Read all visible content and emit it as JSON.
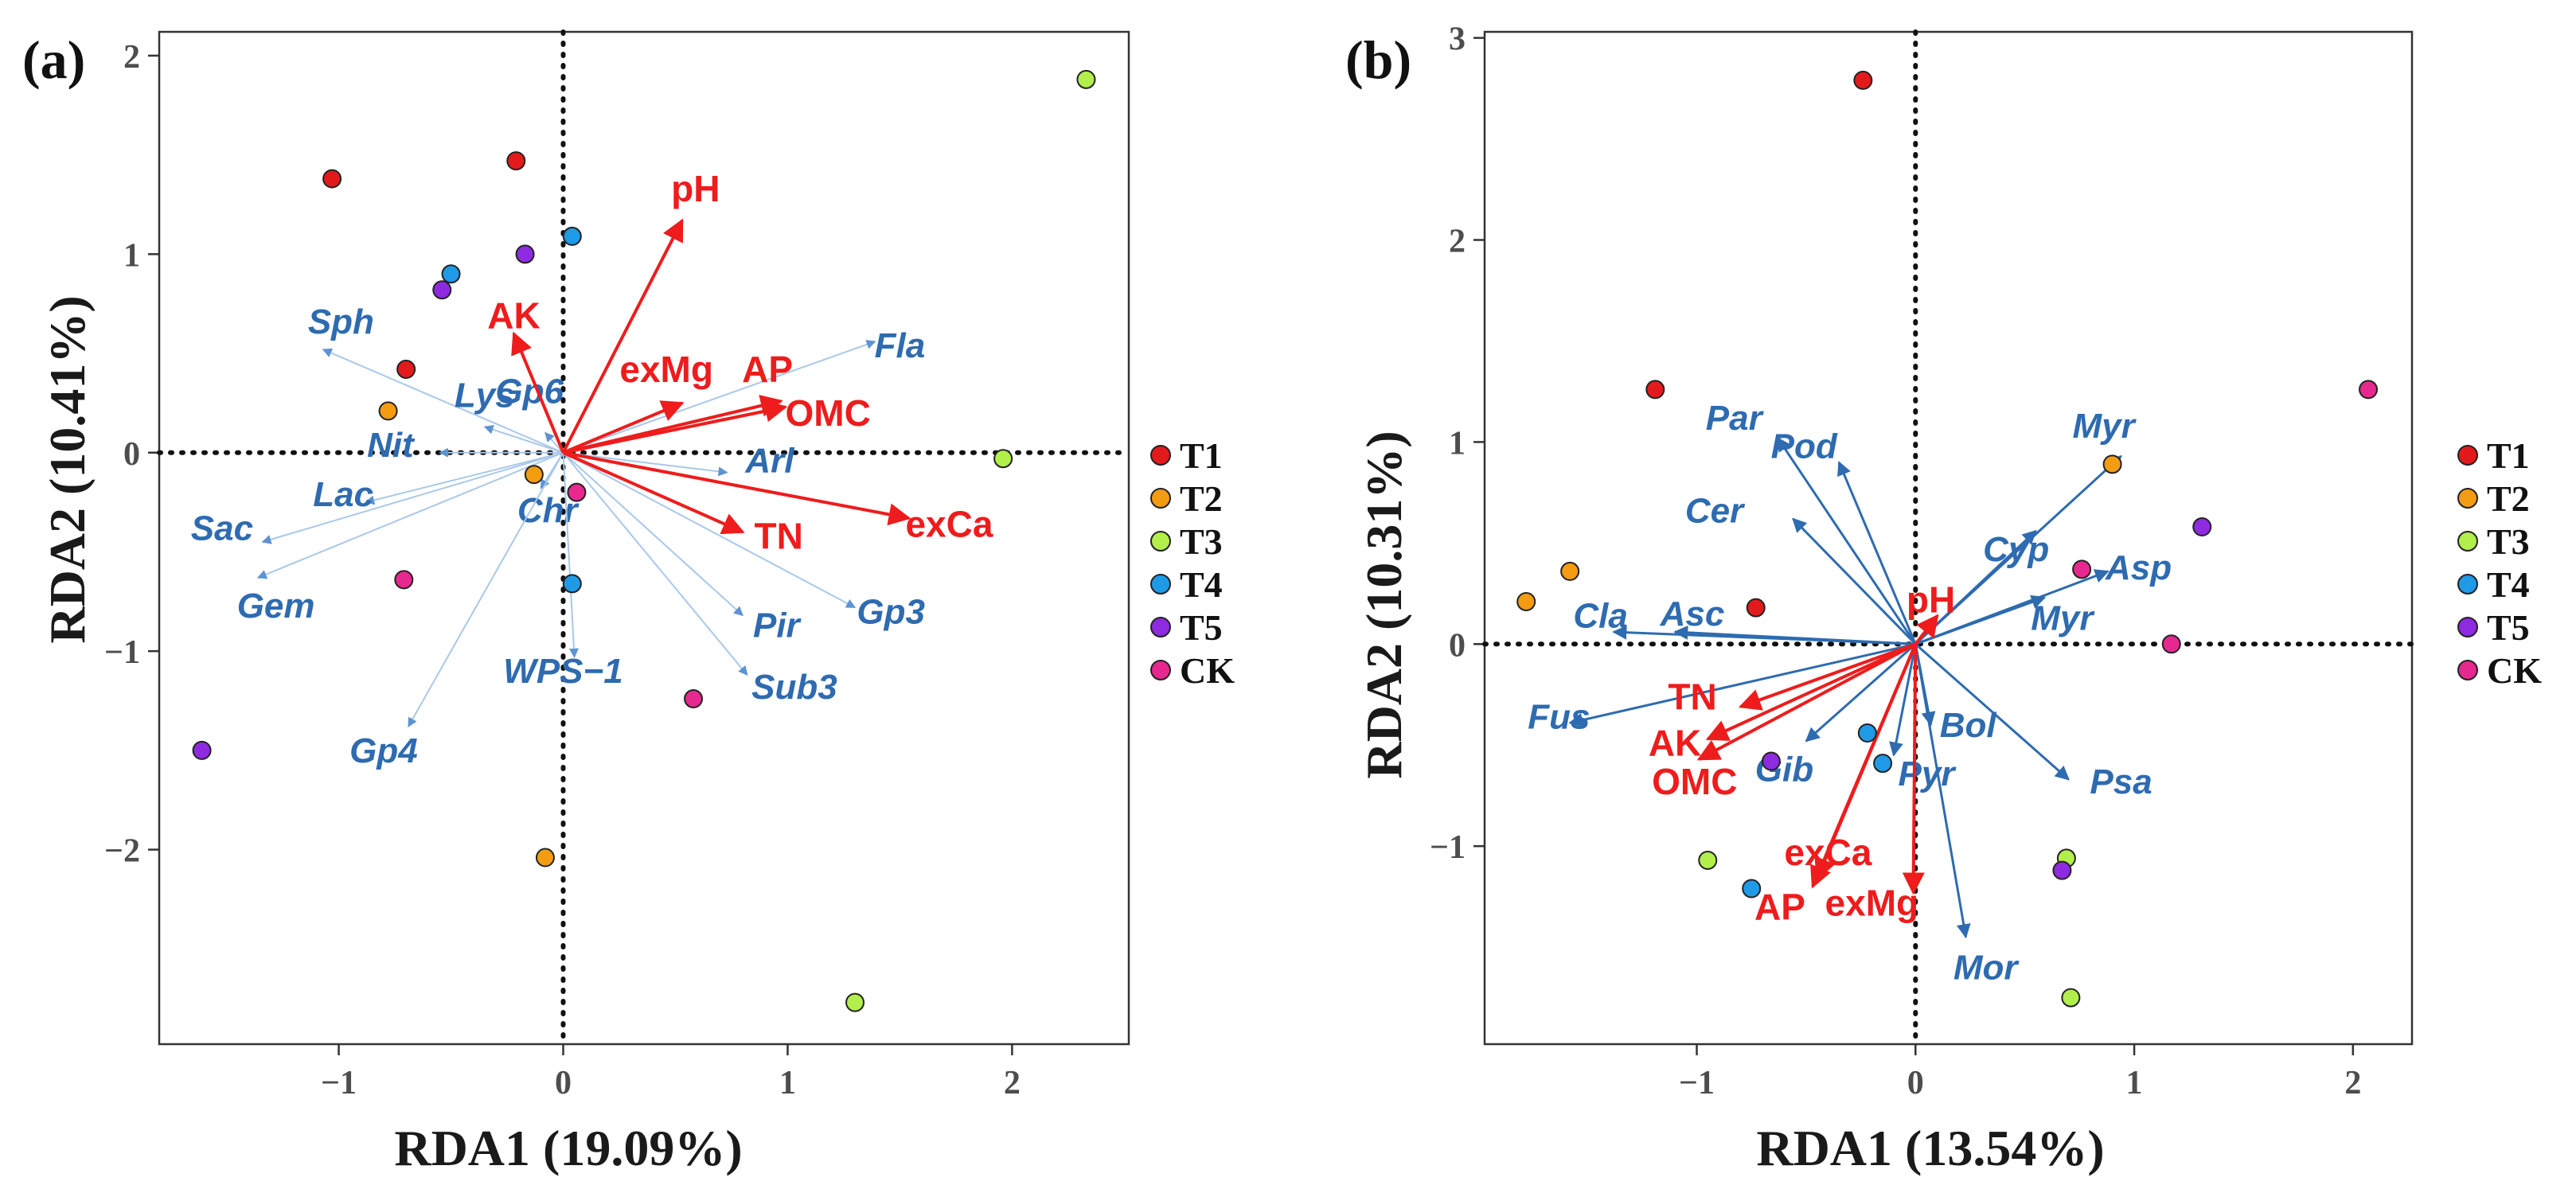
{
  "colors": {
    "T1": "#e31a1c",
    "T2": "#f39c12",
    "T3": "#b2ee4c",
    "T4": "#1f9ae6",
    "T5": "#8e2ae0",
    "CK": "#e6288f",
    "env": "#ee1c1c",
    "species_a": "#a9c8ea",
    "species_b": "#2e6bb0"
  },
  "chart_data": [
    {
      "type": "scatter",
      "panel_label": "(a)",
      "xlabel": "RDA1 (19.09%)",
      "ylabel": "RDA2 (10.41%)",
      "xlim": [
        -1.8,
        2.52
      ],
      "ylim": [
        -2.98,
        2.12
      ],
      "xticks": [
        -1,
        0,
        1,
        2
      ],
      "xtick_labels": [
        "−1",
        "0",
        "1",
        "2"
      ],
      "yticks": [
        -2,
        -1,
        0,
        1,
        2
      ],
      "ytick_labels": [
        "−2",
        "−1",
        "0",
        "1",
        "2"
      ],
      "legend": [
        "T1",
        "T2",
        "T3",
        "T4",
        "T5",
        "CK"
      ],
      "points": [
        {
          "group": "T1",
          "x": -1.03,
          "y": 1.38
        },
        {
          "group": "T1",
          "x": -0.21,
          "y": 1.47
        },
        {
          "group": "T1",
          "x": -0.7,
          "y": 0.42
        },
        {
          "group": "T2",
          "x": -0.78,
          "y": 0.21
        },
        {
          "group": "T2",
          "x": -0.13,
          "y": -0.11
        },
        {
          "group": "T2",
          "x": -0.08,
          "y": -2.04
        },
        {
          "group": "T3",
          "x": 2.33,
          "y": 1.88
        },
        {
          "group": "T3",
          "x": 1.96,
          "y": -0.03
        },
        {
          "group": "T3",
          "x": 1.3,
          "y": -2.77
        },
        {
          "group": "T4",
          "x": -0.5,
          "y": 0.9
        },
        {
          "group": "T4",
          "x": 0.04,
          "y": 1.09
        },
        {
          "group": "T4",
          "x": 0.04,
          "y": -0.66
        },
        {
          "group": "T5",
          "x": -0.54,
          "y": 0.82
        },
        {
          "group": "T5",
          "x": -0.17,
          "y": 1.0
        },
        {
          "group": "T5",
          "x": -1.61,
          "y": -1.5
        },
        {
          "group": "CK",
          "x": 0.06,
          "y": -0.2
        },
        {
          "group": "CK",
          "x": -0.71,
          "y": -0.64
        },
        {
          "group": "CK",
          "x": 0.58,
          "y": -1.24
        }
      ],
      "species": [
        {
          "label": "Sph",
          "x": -1.07,
          "y": 0.52,
          "lx": -0.99,
          "ly": 0.66
        },
        {
          "label": "Lys",
          "x": -0.35,
          "y": 0.13,
          "lx": -0.35,
          "ly": 0.29
        },
        {
          "label": "Nit",
          "x": -0.55,
          "y": 0.0,
          "lx": -0.77,
          "ly": 0.04
        },
        {
          "label": "Gp6",
          "x": -0.08,
          "y": 0.1,
          "lx": -0.15,
          "ly": 0.31
        },
        {
          "label": "Lac",
          "x": -0.88,
          "y": -0.25,
          "lx": -0.98,
          "ly": -0.21
        },
        {
          "label": "Sac",
          "x": -1.34,
          "y": -0.45,
          "lx": -1.52,
          "ly": -0.38
        },
        {
          "label": "Gem",
          "x": -1.36,
          "y": -0.63,
          "lx": -1.28,
          "ly": -0.77
        },
        {
          "label": "Chr",
          "x": -0.1,
          "y": -0.18,
          "lx": -0.07,
          "ly": -0.29
        },
        {
          "label": "WPS−1",
          "x": 0.05,
          "y": -1.03,
          "lx": 0.0,
          "ly": -1.1
        },
        {
          "label": "Gp4",
          "x": -0.69,
          "y": -1.38,
          "lx": -0.8,
          "ly": -1.5
        },
        {
          "label": "Fla",
          "x": 1.39,
          "y": 0.56,
          "lx": 1.5,
          "ly": 0.54
        },
        {
          "label": "Arl",
          "x": 0.73,
          "y": -0.1,
          "lx": 0.92,
          "ly": -0.04
        },
        {
          "label": "Pir",
          "x": 0.8,
          "y": -0.82,
          "lx": 0.95,
          "ly": -0.87
        },
        {
          "label": "Gp3",
          "x": 1.3,
          "y": -0.78,
          "lx": 1.46,
          "ly": -0.8
        },
        {
          "label": "Sub3",
          "x": 0.82,
          "y": -1.12,
          "lx": 1.03,
          "ly": -1.18
        }
      ],
      "env": [
        {
          "label": "pH",
          "x": 0.53,
          "y": 1.17,
          "lx": 0.59,
          "ly": 1.33
        },
        {
          "label": "AK",
          "x": -0.22,
          "y": 0.6,
          "lx": -0.22,
          "ly": 0.69
        },
        {
          "label": "exMg",
          "x": 0.53,
          "y": 0.25,
          "lx": 0.46,
          "ly": 0.42
        },
        {
          "label": "AP",
          "x": 0.97,
          "y": 0.26,
          "lx": 0.91,
          "ly": 0.42
        },
        {
          "label": "OMC",
          "x": 0.99,
          "y": 0.23,
          "lx": 1.18,
          "ly": 0.2
        },
        {
          "label": "TN",
          "x": 0.8,
          "y": -0.4,
          "lx": 0.96,
          "ly": -0.42
        },
        {
          "label": "exCa",
          "x": 1.54,
          "y": -0.33,
          "lx": 1.72,
          "ly": -0.36
        }
      ]
    },
    {
      "type": "scatter",
      "panel_label": "(b)",
      "xlabel": "RDA1 (13.54%)",
      "ylabel": "RDA2 (10.31%)",
      "xlim": [
        -1.97,
        2.27
      ],
      "ylim": [
        -1.98,
        3.03
      ],
      "xticks": [
        -1,
        0,
        1,
        2
      ],
      "xtick_labels": [
        "−1",
        "0",
        "1",
        "2"
      ],
      "yticks": [
        -1,
        0,
        1,
        2,
        3
      ],
      "ytick_labels": [
        "−1",
        "0",
        "1",
        "2",
        "3"
      ],
      "legend": [
        "T1",
        "T2",
        "T3",
        "T4",
        "T5",
        "CK"
      ],
      "points": [
        {
          "group": "T1",
          "x": -0.24,
          "y": 2.79
        },
        {
          "group": "T1",
          "x": -1.19,
          "y": 1.26
        },
        {
          "group": "T1",
          "x": -0.73,
          "y": 0.18
        },
        {
          "group": "T2",
          "x": -1.78,
          "y": 0.21
        },
        {
          "group": "T2",
          "x": -1.58,
          "y": 0.36
        },
        {
          "group": "T2",
          "x": 0.9,
          "y": 0.89
        },
        {
          "group": "T3",
          "x": -0.95,
          "y": -1.07
        },
        {
          "group": "T3",
          "x": 0.69,
          "y": -1.06
        },
        {
          "group": "T3",
          "x": 0.71,
          "y": -1.75
        },
        {
          "group": "T4",
          "x": -0.22,
          "y": -0.44
        },
        {
          "group": "T4",
          "x": -0.15,
          "y": -0.59
        },
        {
          "group": "T4",
          "x": -0.75,
          "y": -1.21
        },
        {
          "group": "T5",
          "x": -0.66,
          "y": -0.58
        },
        {
          "group": "T5",
          "x": 0.67,
          "y": -1.12
        },
        {
          "group": "T5",
          "x": 1.31,
          "y": 0.58
        },
        {
          "group": "CK",
          "x": 2.07,
          "y": 1.26
        },
        {
          "group": "CK",
          "x": 0.76,
          "y": 0.37
        },
        {
          "group": "CK",
          "x": 1.17,
          "y": 0.0
        }
      ],
      "species": [
        {
          "label": "Par",
          "x": -0.63,
          "y": 1.02,
          "lx": -0.83,
          "ly": 1.12
        },
        {
          "label": "Pod",
          "x": -0.35,
          "y": 0.9,
          "lx": -0.51,
          "ly": 0.98
        },
        {
          "label": "Cer",
          "x": -0.56,
          "y": 0.62,
          "lx": -0.92,
          "ly": 0.66
        },
        {
          "label": "Cla",
          "x": -1.38,
          "y": 0.06,
          "lx": -1.44,
          "ly": 0.14
        },
        {
          "label": "Asc",
          "x": -1.1,
          "y": 0.06,
          "lx": -1.02,
          "ly": 0.15
        },
        {
          "label": "Fus",
          "x": -1.58,
          "y": -0.39,
          "lx": -1.63,
          "ly": -0.36
        },
        {
          "label": "Gib",
          "x": -0.5,
          "y": -0.48,
          "lx": -0.6,
          "ly": -0.62
        },
        {
          "label": "Pyr",
          "x": -0.1,
          "y": -0.55,
          "lx": 0.05,
          "ly": -0.64
        },
        {
          "label": "Bol",
          "x": 0.07,
          "y": -0.4,
          "lx": 0.24,
          "ly": -0.4
        },
        {
          "label": "Mor",
          "x": 0.23,
          "y": -1.45,
          "lx": 0.32,
          "ly": -1.6
        },
        {
          "label": "Psa",
          "x": 0.7,
          "y": -0.67,
          "lx": 0.94,
          "ly": -0.68
        },
        {
          "label": "Myr",
          "x": 0.94,
          "y": 0.93,
          "lx": 0.86,
          "ly": 1.08
        },
        {
          "label": "Cyp",
          "x": 0.55,
          "y": 0.56,
          "lx": 0.46,
          "ly": 0.47
        },
        {
          "label": "Asp",
          "x": 0.88,
          "y": 0.36,
          "lx": 1.02,
          "ly": 0.38
        },
        {
          "label": "Myr",
          "x": 0.59,
          "y": 0.23,
          "lx": 0.67,
          "ly": 0.13
        }
      ],
      "env": [
        {
          "label": "pH",
          "x": 0.1,
          "y": 0.14,
          "lx": 0.07,
          "ly": 0.22
        },
        {
          "label": "TN",
          "x": -0.8,
          "y": -0.31,
          "lx": -1.02,
          "ly": -0.26
        },
        {
          "label": "AK",
          "x": -0.95,
          "y": -0.47,
          "lx": -1.1,
          "ly": -0.49
        },
        {
          "label": "OMC",
          "x": -0.99,
          "y": -0.57,
          "lx": -1.01,
          "ly": -0.68
        },
        {
          "label": "exCa",
          "x": -0.45,
          "y": -1.16,
          "lx": -0.4,
          "ly": -1.03
        },
        {
          "label": "AP",
          "x": -0.47,
          "y": -1.2,
          "lx": -0.62,
          "ly": -1.3
        },
        {
          "label": "exMg",
          "x": -0.01,
          "y": -1.23,
          "lx": -0.2,
          "ly": -1.28
        }
      ]
    }
  ]
}
